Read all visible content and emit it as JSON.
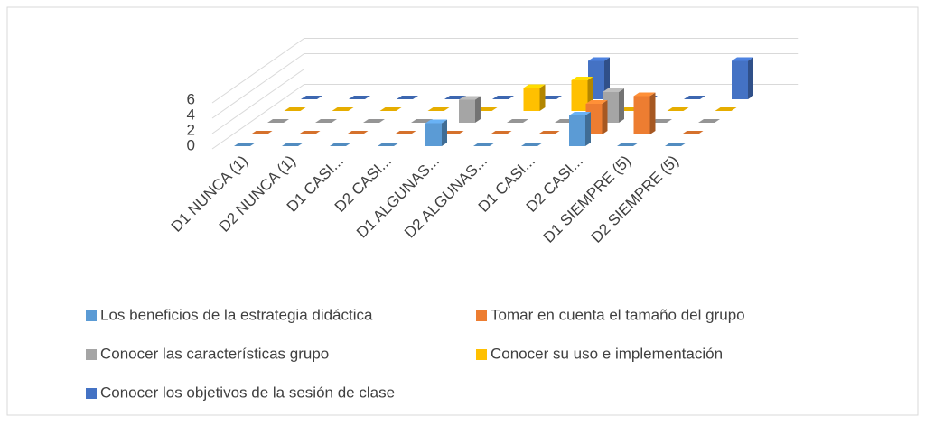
{
  "chart_data": {
    "type": "bar3d",
    "categories": [
      "D1 NUNCA (1)",
      "D2 NUNCA (1)",
      "D1 CASI...",
      "D2 CASI...",
      "D1 ALGUNAS...",
      "D2 ALGUNAS...",
      "D1 CASI...",
      "D2 CASI...",
      "D1 SIEMPRE (5)",
      "D2 SIEMPRE (5)"
    ],
    "series": [
      {
        "name": "Los beneficios de la estrategia didáctica",
        "color": "#5b9bd5",
        "values": [
          0,
          0,
          0,
          0,
          3,
          0,
          0,
          4,
          0,
          0
        ]
      },
      {
        "name": "Tomar en cuenta el tamaño del grupo",
        "color": "#ed7d31",
        "values": [
          0,
          0,
          0,
          0,
          0,
          0,
          0,
          4,
          5,
          0
        ]
      },
      {
        "name": "Conocer las características grupo",
        "color": "#a5a5a5",
        "values": [
          0,
          0,
          0,
          0,
          3,
          0,
          0,
          4,
          0,
          0
        ]
      },
      {
        "name": "Conocer su uso e implementación",
        "color": "#ffc000",
        "values": [
          0,
          0,
          0,
          0,
          0,
          3,
          4,
          0,
          0,
          0
        ]
      },
      {
        "name": "Conocer los objetivos de la sesión de clase",
        "color": "#4472c4",
        "values": [
          0,
          0,
          0,
          0,
          0,
          0,
          5,
          0,
          0,
          5
        ]
      }
    ],
    "ylim": [
      0,
      6
    ],
    "yticks": [
      0,
      2,
      4,
      6
    ],
    "grid": true
  }
}
